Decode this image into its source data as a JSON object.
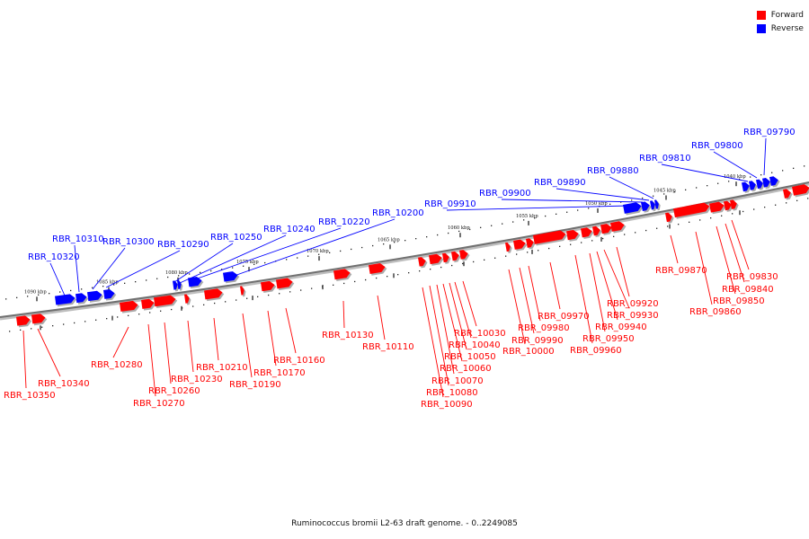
{
  "colors": {
    "forward": "#ff0000",
    "reverse": "#0000ff",
    "backbone": "#808080"
  },
  "legend": {
    "forward_label": "Forward",
    "reverse_label": "Reverse"
  },
  "caption": "Ruminococcus bromii L2-63 draft genome. - 0..2249085",
  "ticks": [
    "1090 kbp",
    "1085 kbp",
    "1080 kbp",
    "1075 kbp",
    "1070 kbp",
    "1065 kbp",
    "1060 kbp",
    "1055 kbp",
    "1050 kbp",
    "1045 kbp",
    "1040 kbp"
  ],
  "reverse_genes": [
    "RBR_10320",
    "RBR_10310",
    "RBR_10300",
    "RBR_10290",
    "RBR_10250",
    "RBR_10240",
    "RBR_10220",
    "RBR_10200",
    "RBR_09910",
    "RBR_09900",
    "RBR_09890",
    "RBR_09880",
    "RBR_09810",
    "RBR_09800",
    "RBR_09790"
  ],
  "forward_genes": [
    "RBR_10350",
    "RBR_10340",
    "RBR_10280",
    "RBR_10270",
    "RBR_10260",
    "RBR_10230",
    "RBR_10210",
    "RBR_10190",
    "RBR_10170",
    "RBR_10160",
    "RBR_10130",
    "RBR_10110",
    "RBR_10090",
    "RBR_10080",
    "RBR_10070",
    "RBR_10060",
    "RBR_10050",
    "RBR_10040",
    "RBR_10030",
    "RBR_10000",
    "RBR_09990",
    "RBR_09980",
    "RBR_09970",
    "RBR_09960",
    "RBR_09950",
    "RBR_09940",
    "RBR_09930",
    "RBR_09920",
    "RBR_09870",
    "RBR_09860",
    "RBR_09850",
    "RBR_09840",
    "RBR_09830"
  ]
}
